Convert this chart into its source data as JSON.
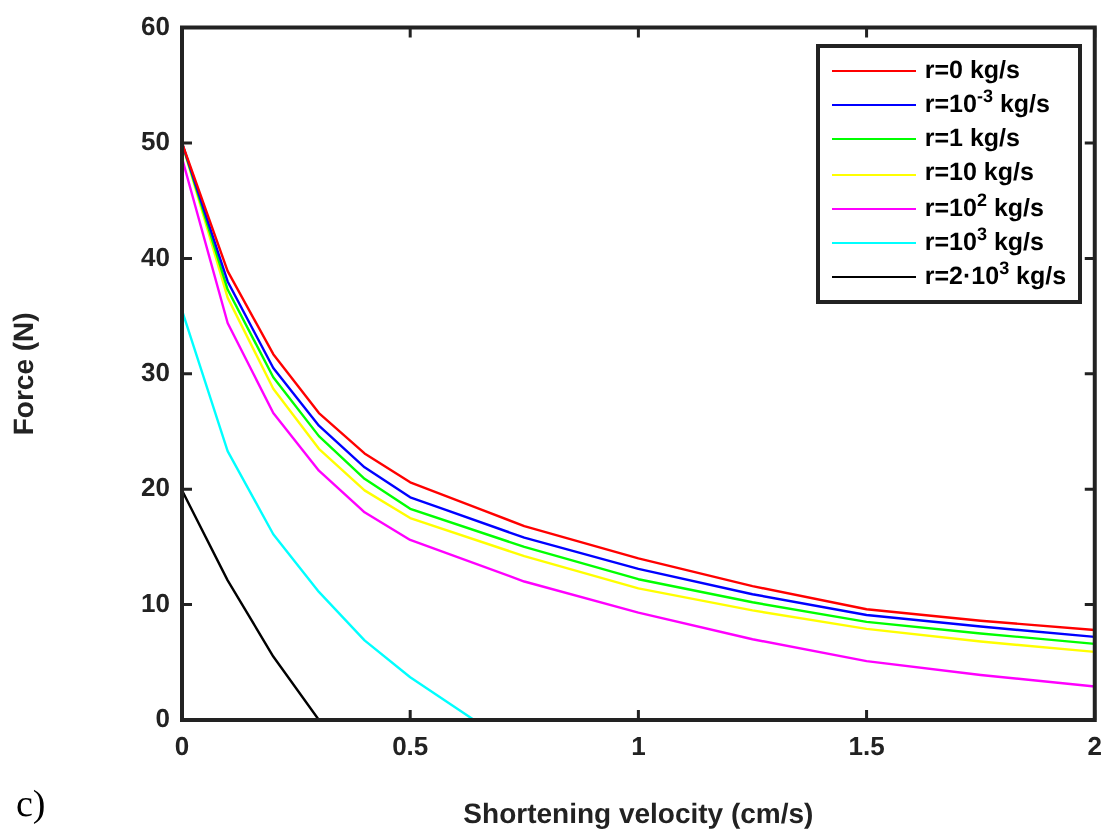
{
  "chart_data": {
    "type": "line",
    "xlabel": "Shortening velocity (cm/s)",
    "ylabel": "Force (N)",
    "xlim": [
      0,
      2
    ],
    "ylim": [
      0,
      60
    ],
    "xticks": [
      0,
      0.5,
      1,
      1.5,
      2
    ],
    "yticks": [
      0,
      10,
      20,
      30,
      40,
      50,
      60
    ],
    "grid": false,
    "legend": "top right",
    "marker": "none",
    "line_style": "solid",
    "annotations": [
      "c)"
    ],
    "series": [
      {
        "name": "r=0 kg/s",
        "color": "#ff0000",
        "x": [
          0,
          0.1,
          0.2,
          0.3,
          0.4,
          0.5,
          0.75,
          1,
          1.25,
          1.5,
          1.75,
          2
        ],
        "values": [
          50,
          38.9,
          31.7,
          26.6,
          23.1,
          20.6,
          16.8,
          14.0,
          11.6,
          9.6,
          8.6,
          7.8
        ]
      },
      {
        "name": "r=10$^{-3}$ kg/s",
        "color": "#0000ff",
        "x": [
          0,
          0.1,
          0.2,
          0.3,
          0.4,
          0.5,
          0.75,
          1,
          1.25,
          1.5,
          1.75,
          2
        ],
        "values": [
          50,
          38.0,
          30.5,
          25.5,
          21.9,
          19.3,
          15.8,
          13.1,
          10.9,
          9.1,
          8.1,
          7.2
        ]
      },
      {
        "name": "r=1 kg/s",
        "color": "#00ff00",
        "x": [
          0,
          0.1,
          0.2,
          0.3,
          0.4,
          0.5,
          0.75,
          1,
          1.25,
          1.5,
          1.75,
          2
        ],
        "values": [
          50,
          37.3,
          29.7,
          24.6,
          20.9,
          18.3,
          15.0,
          12.2,
          10.2,
          8.5,
          7.5,
          6.6
        ]
      },
      {
        "name": "r=10 kg/s",
        "color": "#ffff00",
        "x": [
          0,
          0.1,
          0.2,
          0.3,
          0.4,
          0.5,
          0.75,
          1,
          1.25,
          1.5,
          1.75,
          2
        ],
        "values": [
          50,
          36.6,
          28.7,
          23.5,
          19.9,
          17.5,
          14.2,
          11.4,
          9.5,
          7.9,
          6.8,
          5.9
        ]
      },
      {
        "name": "r=10$^{2}$ kg/s",
        "color": "#ff00ff",
        "x": [
          0,
          0.1,
          0.2,
          0.3,
          0.4,
          0.5,
          0.75,
          1,
          1.25,
          1.5,
          1.75,
          2
        ],
        "values": [
          48.7,
          34.4,
          26.6,
          21.6,
          18.0,
          15.6,
          12.0,
          9.3,
          7.0,
          5.1,
          3.9,
          2.9
        ]
      },
      {
        "name": "r=10$^{3}$ kg/s",
        "color": "#00ffff",
        "x": [
          0,
          0.1,
          0.2,
          0.3,
          0.4,
          0.5,
          0.64
        ],
        "values": [
          35.5,
          23.3,
          16.1,
          11.1,
          6.9,
          3.7,
          0
        ]
      },
      {
        "name": "r=2·10$^{3}$ kg/s",
        "color": "#000000",
        "x": [
          0,
          0.1,
          0.2,
          0.3
        ],
        "values": [
          19.9,
          12.1,
          5.5,
          0
        ]
      }
    ]
  }
}
